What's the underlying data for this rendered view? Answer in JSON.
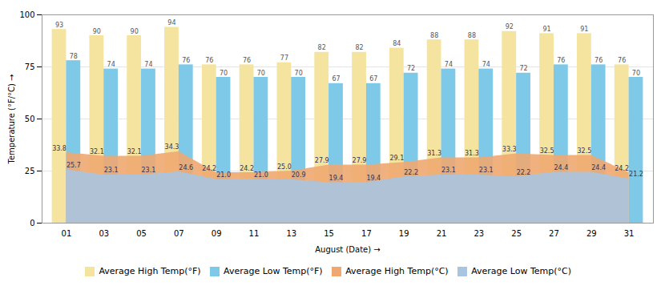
{
  "chart_data": {
    "type": "bar",
    "categories": [
      "01",
      "03",
      "05",
      "07",
      "09",
      "11",
      "13",
      "15",
      "17",
      "19",
      "21",
      "23",
      "25",
      "27",
      "29",
      "31"
    ],
    "series": [
      {
        "name": "Average High Temp(°F)",
        "type": "bar",
        "color": "#F5E4A0",
        "values": [
          93,
          90,
          90,
          94,
          76,
          76,
          77,
          82,
          82,
          84,
          88,
          88,
          92,
          91,
          91,
          76
        ]
      },
      {
        "name": "Average Low Temp(°F)",
        "type": "bar",
        "color": "#7EC8E8",
        "values": [
          78,
          74,
          74,
          76,
          70,
          70,
          70,
          67,
          67,
          72,
          74,
          74,
          72,
          76,
          76,
          70
        ]
      },
      {
        "name": "Average High Temp(°C)",
        "type": "area",
        "color": "#F0A870",
        "values": [
          33.8,
          32.1,
          32.1,
          34.3,
          24.2,
          24.2,
          25.0,
          27.9,
          27.9,
          29.1,
          31.3,
          31.3,
          33.3,
          32.5,
          32.5,
          24.2
        ],
        "value_labels": [
          "33.8",
          "32.1",
          "32.1",
          "34.3",
          "24.2",
          "24.2",
          "25.0",
          "27.9",
          "27.9",
          "29.1",
          "31.3",
          "31.3",
          "33.3",
          "32.5",
          "32.5",
          "24.2"
        ]
      },
      {
        "name": "Average Low Temp(°C)",
        "type": "area",
        "color": "#A8C4E0",
        "values": [
          25.7,
          23.1,
          23.1,
          24.6,
          21.0,
          21.0,
          20.9,
          19.4,
          19.4,
          22.2,
          23.1,
          23.1,
          22.2,
          24.4,
          24.4,
          21.2
        ],
        "value_labels": [
          "25.7",
          "23.1",
          "23.1",
          "24.6",
          "21.0",
          "21.0",
          "20.9",
          "19.4",
          "19.4",
          "22.2",
          "23.1",
          "23.1",
          "22.2",
          "24.4",
          "24.4",
          "21.2"
        ]
      }
    ],
    "xlabel": "August (Date)",
    "ylabel": "Temperature (°F/°C)",
    "ylim": [
      0,
      100
    ],
    "yticks": [
      0,
      25,
      50,
      75,
      100
    ],
    "grid": true,
    "legend": "bottom",
    "data_labels": true
  }
}
